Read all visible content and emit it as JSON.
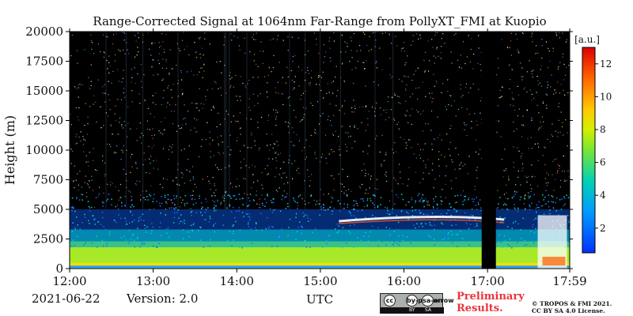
{
  "chart_data": {
    "type": "heatmap",
    "title": "Range-Corrected Signal at 1064nm Far-Range from PollyXT_FMI at Kuopio",
    "xlabel": "UTC",
    "ylabel": "Height (m)",
    "x_ticks": [
      "12:00",
      "13:00",
      "14:00",
      "15:00",
      "16:00",
      "17:00",
      "17:59"
    ],
    "x_range_hours": [
      12.0,
      17.983
    ],
    "y_ticks": [
      0,
      2500,
      5000,
      7500,
      10000,
      12500,
      15000,
      17500,
      20000
    ],
    "ylim": [
      0,
      20000
    ],
    "colorbar": {
      "unit_label": "[a.u.]",
      "range": [
        0.5,
        13
      ],
      "ticks": [
        2,
        4,
        6,
        8,
        10,
        12
      ],
      "colormap": "jet"
    },
    "features": {
      "boundary_layer_top_m": 5000,
      "near_surface_high_signal_top_m": 1800,
      "cloud_layer": {
        "start_hour": 15.6,
        "end_hour": 17.2,
        "height_m": 4400
      },
      "data_gap_hours": [
        16.93,
        17.1
      ],
      "dense_return_hours": [
        17.6,
        17.95
      ]
    }
  },
  "footer": {
    "date": "2021-06-22",
    "version": "Version: 2.0",
    "license_badge": {
      "top_icons": [
        "cc",
        "by-person",
        "sa-arrow"
      ],
      "tags": [
        "BY",
        "SA"
      ]
    },
    "preliminary": "Preliminary\nResults.",
    "copyright": "© TROPOS & FMI 2021.\nCC BY SA 4.0 License."
  },
  "colors": {
    "background": "#000000",
    "accent_red": "#e8353b"
  }
}
